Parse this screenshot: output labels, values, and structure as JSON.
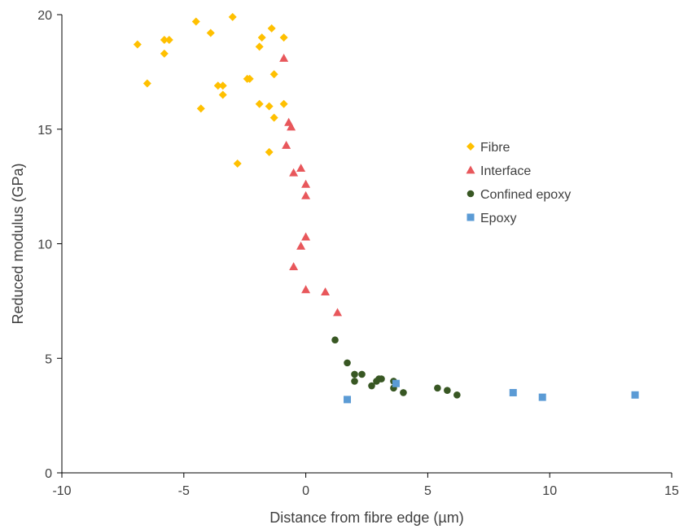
{
  "chart_data": {
    "type": "scatter",
    "xlabel": "Distance from fibre edge (µm)",
    "ylabel": "Reduced modulus (GPa)",
    "xlim": [
      -10,
      15
    ],
    "ylim": [
      0,
      20
    ],
    "x_ticks": [
      -10,
      -5,
      0,
      5,
      10,
      15
    ],
    "y_ticks": [
      0,
      5,
      10,
      15,
      20
    ],
    "grid": false,
    "legend_position": "right",
    "series": [
      {
        "name": "Fibre",
        "marker": "diamond",
        "color": "#FFC000",
        "points": [
          [
            -6.9,
            18.7
          ],
          [
            -6.5,
            17.0
          ],
          [
            -5.8,
            18.9
          ],
          [
            -5.6,
            18.9
          ],
          [
            -5.8,
            18.3
          ],
          [
            -4.5,
            19.7
          ],
          [
            -3.9,
            19.2
          ],
          [
            -3.0,
            19.9
          ],
          [
            -1.4,
            19.4
          ],
          [
            -0.9,
            19.0
          ],
          [
            -1.8,
            19.0
          ],
          [
            -1.9,
            18.6
          ],
          [
            -3.6,
            16.9
          ],
          [
            -3.4,
            16.9
          ],
          [
            -3.4,
            16.5
          ],
          [
            -4.3,
            15.9
          ],
          [
            -2.4,
            17.2
          ],
          [
            -2.3,
            17.2
          ],
          [
            -1.3,
            17.4
          ],
          [
            -1.9,
            16.1
          ],
          [
            -1.5,
            16.0
          ],
          [
            -0.9,
            16.1
          ],
          [
            -1.3,
            15.5
          ],
          [
            -1.5,
            14.0
          ],
          [
            -2.8,
            13.5
          ]
        ]
      },
      {
        "name": "Interface",
        "marker": "triangle",
        "color": "#E8575B",
        "points": [
          [
            -0.9,
            18.1
          ],
          [
            -0.7,
            15.3
          ],
          [
            -0.6,
            15.1
          ],
          [
            -0.8,
            14.3
          ],
          [
            -0.2,
            13.3
          ],
          [
            -0.5,
            13.1
          ],
          [
            0.0,
            12.6
          ],
          [
            0.0,
            12.1
          ],
          [
            0.0,
            10.3
          ],
          [
            -0.2,
            9.9
          ],
          [
            -0.5,
            9.0
          ],
          [
            0.0,
            8.0
          ],
          [
            0.8,
            7.9
          ],
          [
            1.3,
            7.0
          ]
        ]
      },
      {
        "name": "Confined epoxy",
        "marker": "circle",
        "color": "#385723",
        "points": [
          [
            1.2,
            5.8
          ],
          [
            1.7,
            4.8
          ],
          [
            2.0,
            4.3
          ],
          [
            2.3,
            4.3
          ],
          [
            2.0,
            4.0
          ],
          [
            3.0,
            4.1
          ],
          [
            3.1,
            4.1
          ],
          [
            2.9,
            4.0
          ],
          [
            2.7,
            3.8
          ],
          [
            3.6,
            4.0
          ],
          [
            3.6,
            3.7
          ],
          [
            4.0,
            3.5
          ],
          [
            5.4,
            3.7
          ],
          [
            5.8,
            3.6
          ],
          [
            6.2,
            3.4
          ]
        ]
      },
      {
        "name": "Epoxy",
        "marker": "square",
        "color": "#5B9BD5",
        "points": [
          [
            1.7,
            3.2
          ],
          [
            3.7,
            3.9
          ],
          [
            8.5,
            3.5
          ],
          [
            9.7,
            3.3
          ],
          [
            13.5,
            3.4
          ]
        ]
      }
    ]
  }
}
